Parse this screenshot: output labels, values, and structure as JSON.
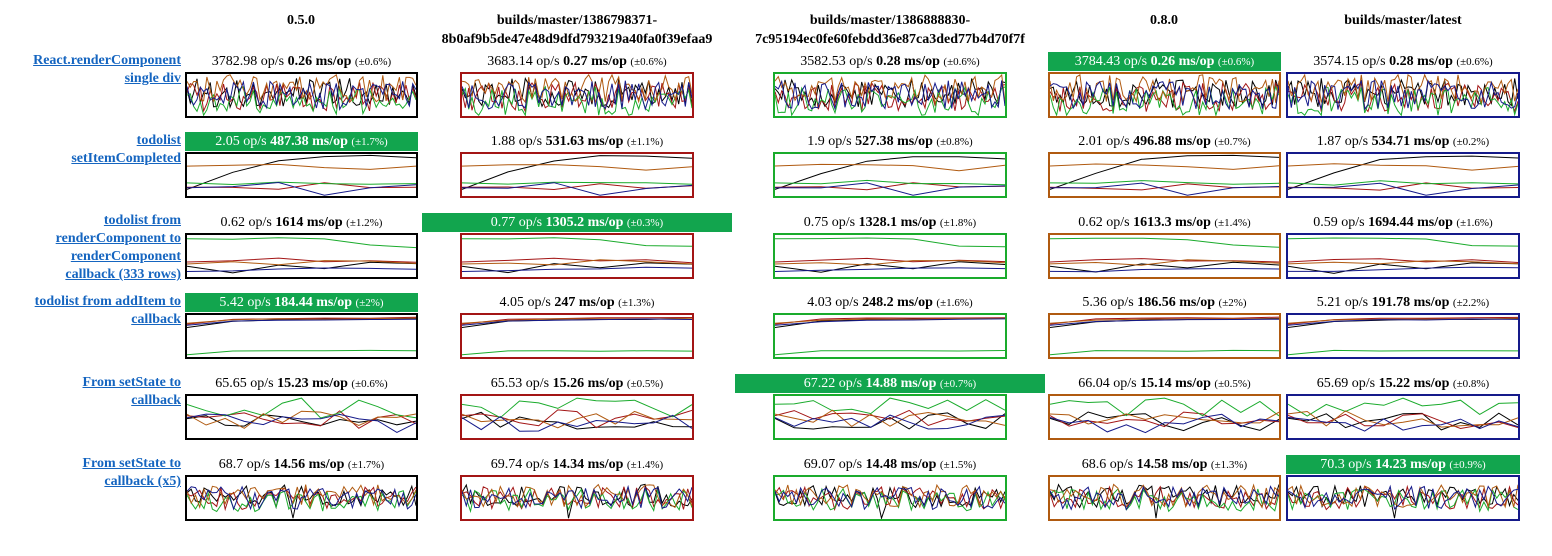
{
  "columns": [
    {
      "line1": "0.5.0",
      "line2": "",
      "border": "#000000"
    },
    {
      "line1": "builds/master/1386798371-",
      "line2": "8b0af9b5de47e48d9dfd793219a40fa0f39efaa9",
      "border": "#a31515"
    },
    {
      "line1": "builds/master/1386888830-",
      "line2": "7c95194ec0fe60febdd36e87ca3ded77b4d70f7f",
      "border": "#1aab2c"
    },
    {
      "line1": "0.8.0",
      "line2": "",
      "border": "#b05a10"
    },
    {
      "line1": "builds/master/latest",
      "line2": "",
      "border": "#151a8a"
    }
  ],
  "series_colors": {
    "black": "#000000",
    "red": "#a31515",
    "green": "#1aab2c",
    "orange": "#b05a10",
    "blue": "#151a8a"
  },
  "best_color": "#12a54e",
  "rows": [
    {
      "label_lines": [
        "React.renderComponent",
        "single div"
      ],
      "pattern": "dense",
      "best": 3,
      "cells": [
        {
          "ops": "3782.98",
          "ms": "0.26",
          "err": "(±0.6%)"
        },
        {
          "ops": "3683.14",
          "ms": "0.27",
          "err": "(±0.6%)"
        },
        {
          "ops": "3582.53",
          "ms": "0.28",
          "err": "(±0.6%)"
        },
        {
          "ops": "3784.43",
          "ms": "0.26",
          "err": "(±0.6%)"
        },
        {
          "ops": "3574.15",
          "ms": "0.28",
          "err": "(±0.6%)"
        }
      ]
    },
    {
      "label_lines": [
        "todolist",
        "setItemCompleted"
      ],
      "pattern": "sparse",
      "best": 0,
      "cells": [
        {
          "ops": "2.05",
          "ms": "487.38",
          "err": "(±1.7%)"
        },
        {
          "ops": "1.88",
          "ms": "531.63",
          "err": "(±1.1%)"
        },
        {
          "ops": "1.9",
          "ms": "527.38",
          "err": "(±0.8%)"
        },
        {
          "ops": "2.01",
          "ms": "496.88",
          "err": "(±0.7%)"
        },
        {
          "ops": "1.87",
          "ms": "534.71",
          "err": "(±0.2%)"
        }
      ]
    },
    {
      "label_lines": [
        "todolist from",
        "renderComponent to",
        "renderComponent",
        "callback (333 rows)"
      ],
      "pattern": "sparse2",
      "best": 1,
      "cells": [
        {
          "ops": "0.62",
          "ms": "1614",
          "err": "(±1.2%)"
        },
        {
          "ops": "0.77",
          "ms": "1305.2",
          "err": "(±0.3%)"
        },
        {
          "ops": "0.75",
          "ms": "1328.1",
          "err": "(±1.8%)"
        },
        {
          "ops": "0.62",
          "ms": "1613.3",
          "err": "(±1.4%)"
        },
        {
          "ops": "0.59",
          "ms": "1694.44",
          "err": "(±1.6%)"
        }
      ]
    },
    {
      "label_lines": [
        "todolist from addItem to",
        "callback"
      ],
      "pattern": "flat",
      "best": 0,
      "cells": [
        {
          "ops": "5.42",
          "ms": "184.44",
          "err": "(±2%)"
        },
        {
          "ops": "4.05",
          "ms": "247",
          "err": "(±1.3%)"
        },
        {
          "ops": "4.03",
          "ms": "248.2",
          "err": "(±1.6%)"
        },
        {
          "ops": "5.36",
          "ms": "186.56",
          "err": "(±2%)"
        },
        {
          "ops": "5.21",
          "ms": "191.78",
          "err": "(±2.2%)"
        }
      ]
    },
    {
      "label_lines": [
        "From setState to",
        "callback"
      ],
      "pattern": "medium",
      "best": 2,
      "cells": [
        {
          "ops": "65.65",
          "ms": "15.23",
          "err": "(±0.6%)"
        },
        {
          "ops": "65.53",
          "ms": "15.26",
          "err": "(±0.5%)"
        },
        {
          "ops": "67.22",
          "ms": "14.88",
          "err": "(±0.7%)"
        },
        {
          "ops": "66.04",
          "ms": "15.14",
          "err": "(±0.5%)"
        },
        {
          "ops": "65.69",
          "ms": "15.22",
          "err": "(±0.8%)"
        }
      ]
    },
    {
      "label_lines": [
        "From setState to",
        "callback (x5)"
      ],
      "pattern": "dense2",
      "best": 4,
      "cells": [
        {
          "ops": "68.7",
          "ms": "14.56",
          "err": "(±1.7%)"
        },
        {
          "ops": "69.74",
          "ms": "14.34",
          "err": "(±1.4%)"
        },
        {
          "ops": "69.07",
          "ms": "14.48",
          "err": "(±1.5%)"
        },
        {
          "ops": "68.6",
          "ms": "14.58",
          "err": "(±1.3%)"
        },
        {
          "ops": "70.3",
          "ms": "14.23",
          "err": "(±0.9%)"
        }
      ]
    }
  ],
  "units": {
    "ops": "op/s",
    "ms": "ms/op"
  },
  "chart_data": {
    "type": "table",
    "columns": [
      "0.5.0",
      "builds/master/1386798371-8b0af9b5de47e48d9dfd793219a40fa0f39efaa9",
      "builds/master/1386888830-7c95194ec0fe60febdd36e87ca3ded77b4d70f7f",
      "0.8.0",
      "builds/master/latest"
    ],
    "rows": [
      "React.renderComponent single div",
      "todolist setItemCompleted",
      "todolist from renderComponent to renderComponent callback (333 rows)",
      "todolist from addItem to callback",
      "From setState to callback",
      "From setState to callback (x5)"
    ],
    "ops_per_sec": [
      [
        3782.98,
        3683.14,
        3582.53,
        3784.43,
        3574.15
      ],
      [
        2.05,
        1.88,
        1.9,
        2.01,
        1.87
      ],
      [
        0.62,
        0.77,
        0.75,
        0.62,
        0.59
      ],
      [
        5.42,
        4.05,
        4.03,
        5.36,
        5.21
      ],
      [
        65.65,
        65.53,
        67.22,
        66.04,
        65.69
      ],
      [
        68.7,
        69.74,
        69.07,
        68.6,
        70.3
      ]
    ],
    "ms_per_op": [
      [
        0.26,
        0.27,
        0.28,
        0.26,
        0.28
      ],
      [
        487.38,
        531.63,
        527.38,
        496.88,
        534.71
      ],
      [
        1614,
        1305.2,
        1328.1,
        1613.3,
        1694.44
      ],
      [
        184.44,
        247,
        248.2,
        186.56,
        191.78
      ],
      [
        15.23,
        15.26,
        14.88,
        15.14,
        15.22
      ],
      [
        14.56,
        14.34,
        14.48,
        14.58,
        14.23
      ]
    ]
  }
}
